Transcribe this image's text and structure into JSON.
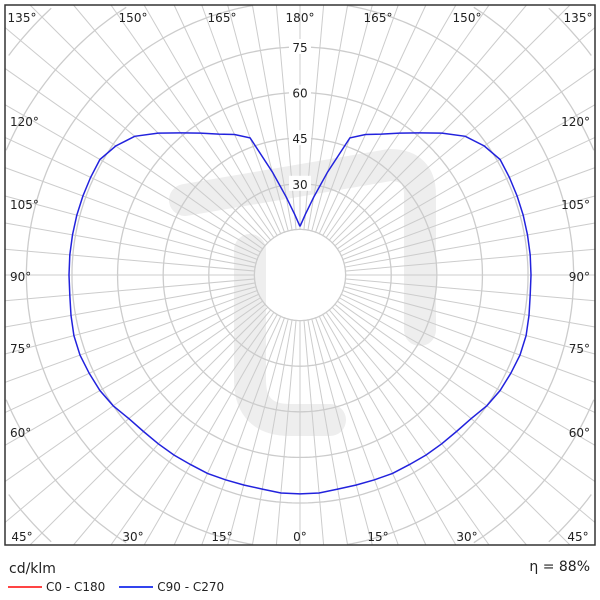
{
  "chart_data": {
    "type": "polar",
    "unit_label": "cd/klm",
    "efficiency": "η = 88%",
    "radial_ticks": [
      30,
      45,
      60,
      75
    ],
    "angle_labels": {
      "top": [
        "135°",
        "150°",
        "165°",
        "180°",
        "165°",
        "150°",
        "135°"
      ],
      "left": [
        "120°",
        "105°",
        "90°",
        "75°",
        "60°"
      ],
      "right": [
        "120°",
        "105°",
        "90°",
        "75°",
        "60°"
      ],
      "bottom": [
        "45°",
        "30°",
        "15°",
        "0°",
        "15°",
        "30°",
        "45°"
      ]
    },
    "grid": true,
    "legend_position": "bottom-left",
    "series": [
      {
        "name": "C0 - C180",
        "color": "#ff3333",
        "gamma": [],
        "values": []
      },
      {
        "name": "C90 - C270",
        "color": "#2222dd",
        "gamma": [
          0,
          5,
          10,
          15,
          20,
          25,
          30,
          35,
          40,
          45,
          50,
          55,
          60,
          65,
          70,
          75,
          80,
          85,
          90,
          95,
          100,
          105,
          110,
          115,
          120,
          125,
          130,
          135,
          140,
          145,
          150,
          155,
          160,
          165,
          170,
          175,
          180
        ],
        "values": [
          72,
          72,
          71.5,
          71.5,
          71.7,
          72,
          72,
          72.3,
          72.5,
          72.8,
          73.5,
          75,
          76,
          76.5,
          77,
          77,
          76.5,
          76,
          76,
          76,
          76,
          76,
          76,
          76,
          76,
          74,
          71,
          66,
          61,
          57,
          53.5,
          51,
          48,
          35,
          26,
          20,
          16
        ]
      }
    ]
  }
}
